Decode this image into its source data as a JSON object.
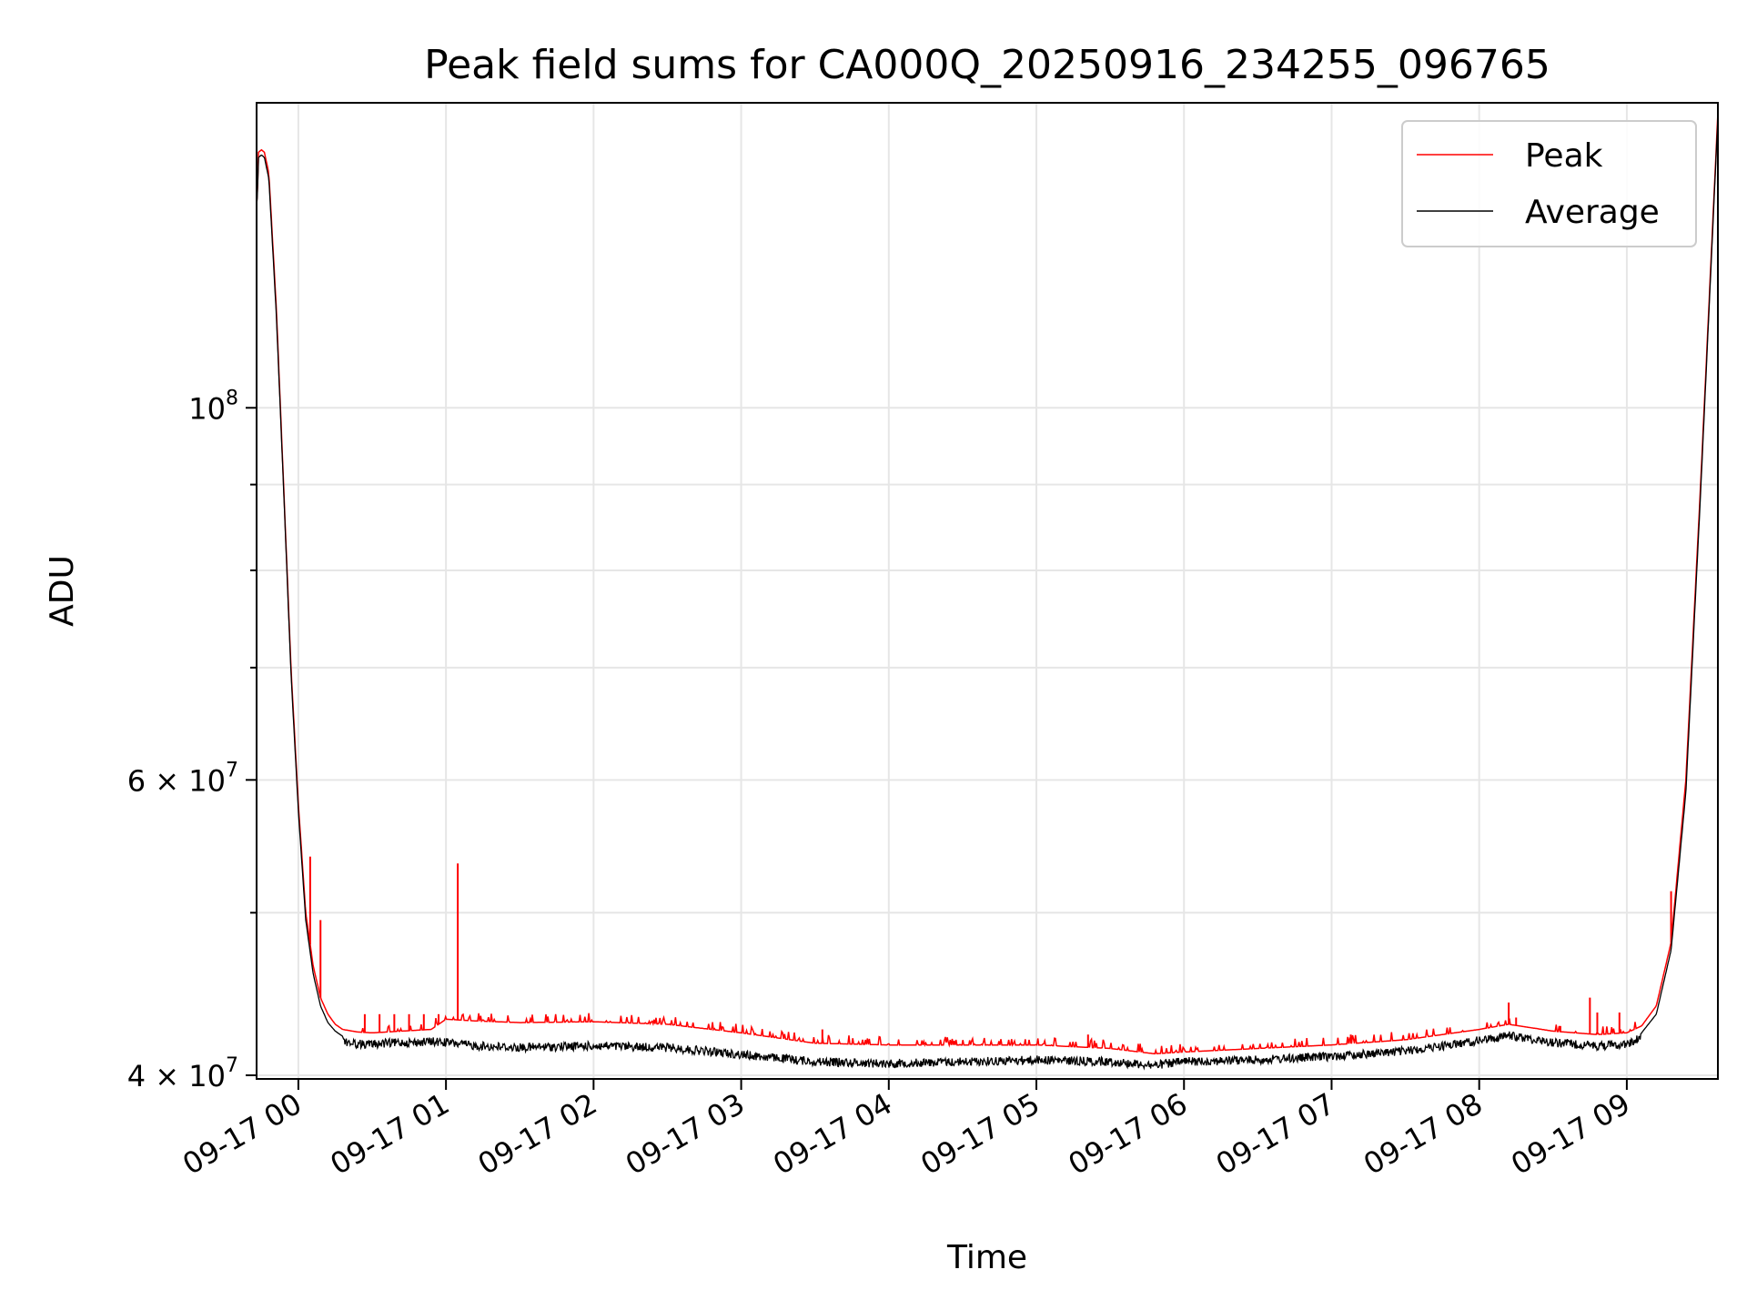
{
  "chart_data": {
    "type": "line",
    "title": "Peak field sums for CA000Q_20250916_234255_096765",
    "xlabel": "Time",
    "ylabel": "ADU",
    "x_unit": "hours since 2025-09-17 00:00",
    "xlim": [
      -0.283,
      9.617
    ],
    "ylim": [
      39800000,
      152000000
    ],
    "yscale": "log",
    "grid": true,
    "legend_position": "top-right",
    "x_ticks": [
      {
        "value": 0,
        "label": "09-17 00"
      },
      {
        "value": 1,
        "label": "09-17 01"
      },
      {
        "value": 2,
        "label": "09-17 02"
      },
      {
        "value": 3,
        "label": "09-17 03"
      },
      {
        "value": 4,
        "label": "09-17 04"
      },
      {
        "value": 5,
        "label": "09-17 05"
      },
      {
        "value": 6,
        "label": "09-17 06"
      },
      {
        "value": 7,
        "label": "09-17 07"
      },
      {
        "value": 8,
        "label": "09-17 08"
      },
      {
        "value": 9,
        "label": "09-17 09"
      }
    ],
    "y_major_ticks": [
      {
        "value": 40000000,
        "base": "4 × 10",
        "exp": "7"
      },
      {
        "value": 60000000,
        "base": "6 × 10",
        "exp": "7"
      },
      {
        "value": 100000000,
        "base": "10",
        "exp": "8"
      }
    ],
    "y_minor_ticks": [
      50000000,
      70000000,
      80000000,
      90000000
    ],
    "series": [
      {
        "name": "Peak",
        "color": "#ff0000",
        "x": [
          -0.28,
          -0.27,
          -0.25,
          -0.23,
          -0.2,
          -0.15,
          -0.1,
          -0.05,
          0,
          0.05,
          0.1,
          0.15,
          0.2,
          0.25,
          0.3,
          0.4,
          0.5,
          0.6,
          0.7,
          0.8,
          0.9,
          1,
          1.2,
          1.5,
          2,
          2.5,
          3,
          3.5,
          4,
          4.5,
          5,
          5.5,
          5.8,
          6,
          6.5,
          7,
          7.5,
          8,
          8.2,
          8.5,
          8.8,
          9,
          9.1,
          9.2,
          9.3,
          9.4,
          9.5,
          9.617
        ],
        "y": [
          132000000,
          142000000,
          142500000,
          142000000,
          138000000,
          115000000,
          90000000,
          70000000,
          58000000,
          50000000,
          46500000,
          44500000,
          43500000,
          42900000,
          42600000,
          42450000,
          42400000,
          42450000,
          42500000,
          42550000,
          42600000,
          43200000,
          43100000,
          43000000,
          43050000,
          42900000,
          42400000,
          41800000,
          41700000,
          41700000,
          41700000,
          41500000,
          41200000,
          41300000,
          41500000,
          41700000,
          42000000,
          42600000,
          42900000,
          42500000,
          42300000,
          42400000,
          42800000,
          44000000,
          48000000,
          60000000,
          90000000,
          150000000
        ],
        "spikes": [
          {
            "x": 0.08,
            "y": 54000000
          },
          {
            "x": 0.15,
            "y": 49500000
          },
          {
            "x": 0.45,
            "y": 43500000
          },
          {
            "x": 0.55,
            "y": 43500000
          },
          {
            "x": 0.65,
            "y": 43500000
          },
          {
            "x": 0.75,
            "y": 43500000
          },
          {
            "x": 0.85,
            "y": 43500000
          },
          {
            "x": 0.95,
            "y": 43500000
          },
          {
            "x": 1.08,
            "y": 53500000
          },
          {
            "x": 3.55,
            "y": 42600000
          },
          {
            "x": 5.35,
            "y": 42300000
          },
          {
            "x": 7.13,
            "y": 42300000
          },
          {
            "x": 8.2,
            "y": 44200000
          },
          {
            "x": 8.25,
            "y": 43300000
          },
          {
            "x": 8.55,
            "y": 42800000
          },
          {
            "x": 8.75,
            "y": 44500000
          },
          {
            "x": 8.8,
            "y": 43600000
          },
          {
            "x": 8.95,
            "y": 43600000
          },
          {
            "x": 9.3,
            "y": 51500000
          }
        ]
      },
      {
        "name": "Average",
        "color": "#000000",
        "x": [
          -0.28,
          -0.27,
          -0.25,
          -0.23,
          -0.2,
          -0.15,
          -0.1,
          -0.05,
          0,
          0.05,
          0.1,
          0.15,
          0.2,
          0.25,
          0.3,
          0.4,
          0.5,
          0.6,
          0.7,
          0.8,
          0.9,
          1,
          1.2,
          1.5,
          2,
          2.5,
          3,
          3.5,
          4,
          4.5,
          5,
          5.5,
          5.8,
          6,
          6.5,
          7,
          7.5,
          8,
          8.2,
          8.5,
          8.8,
          9,
          9.1,
          9.2,
          9.3,
          9.4,
          9.5,
          9.617
        ],
        "y": [
          132000000,
          141000000,
          141500000,
          141000000,
          137000000,
          114000000,
          89500000,
          69500000,
          57500000,
          49500000,
          46000000,
          44000000,
          43000000,
          42500000,
          42200000,
          42000000,
          42000000,
          42050000,
          42100000,
          42100000,
          42150000,
          42100000,
          41900000,
          41800000,
          41900000,
          41800000,
          41400000,
          41000000,
          40900000,
          41000000,
          41100000,
          41000000,
          40800000,
          41000000,
          41100000,
          41300000,
          41600000,
          42200000,
          42500000,
          42100000,
          41900000,
          42000000,
          42400000,
          43500000,
          47500000,
          59000000,
          89000000,
          149000000
        ],
        "noise_amplitude": 0.012
      }
    ]
  }
}
